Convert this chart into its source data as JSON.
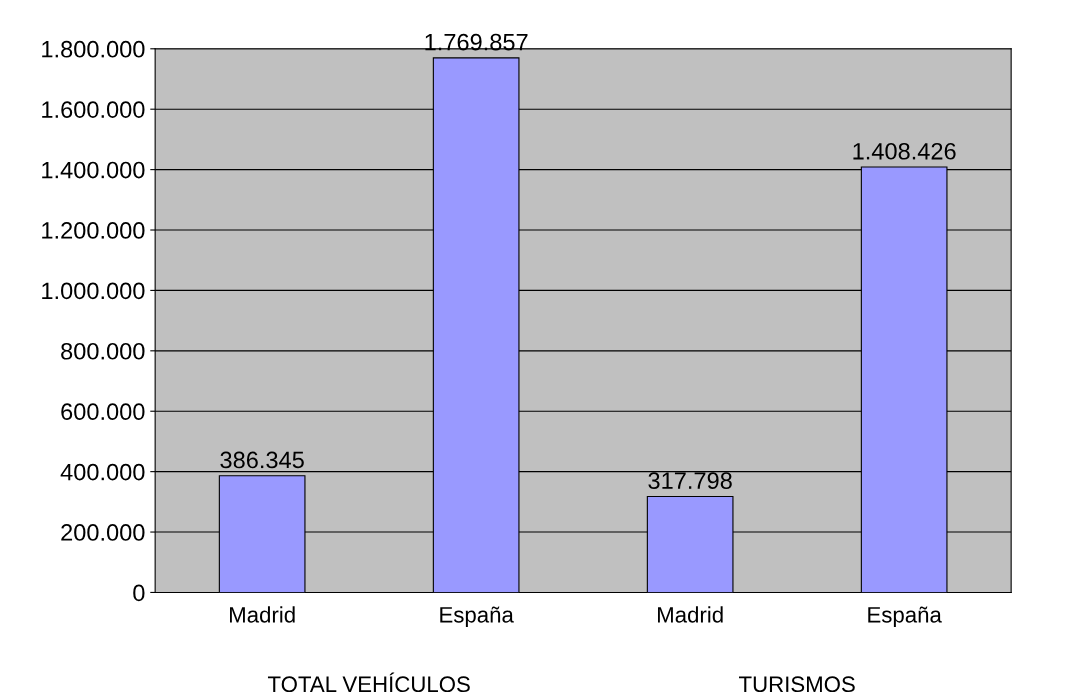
{
  "chart_data": {
    "type": "bar",
    "categories": [
      "Madrid",
      "España",
      "Madrid",
      "España"
    ],
    "values": [
      386345,
      1769857,
      317798,
      1408426
    ],
    "value_labels": [
      "386.345",
      "1.769.857",
      "317.798",
      "1.408.426"
    ],
    "color": "#9999ff",
    "annotations": [
      "TOTAL VEHÍCULOS",
      "TURISMOS"
    ],
    "ylim": [
      0,
      1800000
    ],
    "yticks": [
      {
        "value": 0,
        "label": "0"
      },
      {
        "value": 200000,
        "label": "200.000"
      },
      {
        "value": 400000,
        "label": "400.000"
      },
      {
        "value": 600000,
        "label": "600.000"
      },
      {
        "value": 800000,
        "label": "800.000"
      },
      {
        "value": 1000000,
        "label": "1.000.000"
      },
      {
        "value": 1200000,
        "label": "1.200.000"
      },
      {
        "value": 1400000,
        "label": "1.400.000"
      },
      {
        "value": 1600000,
        "label": "1.600.000"
      },
      {
        "value": 1800000,
        "label": "1.800.000"
      }
    ],
    "grid": "y"
  }
}
